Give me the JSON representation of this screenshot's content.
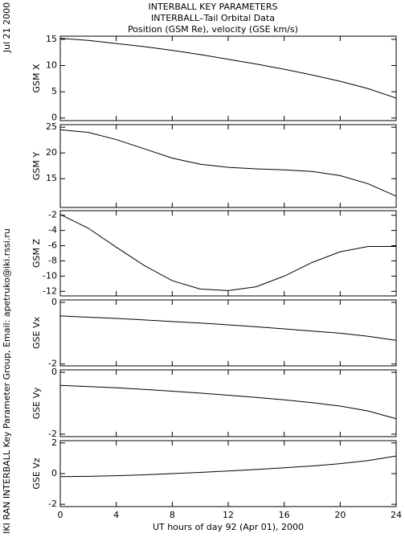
{
  "header": {
    "title": "INTERBALL KEY PARAMETERS",
    "subtitle": "INTERBALL–Tail Orbital Data",
    "description": "Position (GSM Re), velocity (GSE km/s)"
  },
  "side": {
    "date": "Jul 21 2000",
    "credit": "IKI RAN INTERBALL Key Parameter Group, Email: apetruko@iki.rssi.ru"
  },
  "chart_data": [
    {
      "type": "line",
      "ylabel": "GSM X",
      "x": [
        0,
        2,
        4,
        6,
        8,
        10,
        12,
        14,
        16,
        18,
        20,
        22,
        24
      ],
      "values": [
        15.2,
        14.8,
        14.2,
        13.6,
        12.9,
        12.1,
        11.2,
        10.3,
        9.3,
        8.2,
        7.0,
        5.6,
        3.8
      ],
      "xlim": [
        0,
        24
      ],
      "xticks": [
        0,
        4,
        8,
        12,
        16,
        20,
        24
      ],
      "ylim": [
        -0.5,
        15.6
      ],
      "yticks": [
        0,
        5,
        10,
        15
      ],
      "color": "#000000"
    },
    {
      "type": "line",
      "ylabel": "GSM Y",
      "x": [
        0,
        2,
        4,
        6,
        8,
        10,
        12,
        14,
        16,
        18,
        20,
        22,
        24
      ],
      "values": [
        24.5,
        24.0,
        22.6,
        20.8,
        19.0,
        17.8,
        17.2,
        16.9,
        16.7,
        16.4,
        15.6,
        14.0,
        11.6
      ],
      "xlim": [
        0,
        24
      ],
      "xticks": [
        0,
        4,
        8,
        12,
        16,
        20,
        24
      ],
      "ylim": [
        9.4,
        25.5
      ],
      "yticks": [
        15,
        20,
        25
      ],
      "color": "#000000"
    },
    {
      "type": "line",
      "ylabel": "GSM Z",
      "x": [
        0,
        2,
        4,
        6,
        8,
        10,
        12,
        14,
        16,
        18,
        20,
        22,
        24
      ],
      "values": [
        -1.9,
        -3.7,
        -6.2,
        -8.6,
        -10.6,
        -11.7,
        -11.9,
        -11.4,
        -10.0,
        -8.2,
        -6.8,
        -6.1,
        -6.1
      ],
      "xlim": [
        0,
        24
      ],
      "xticks": [
        0,
        4,
        8,
        12,
        16,
        20,
        24
      ],
      "ylim": [
        -12.6,
        -1.4
      ],
      "yticks": [
        -2,
        -4,
        -6,
        -8,
        -10,
        -12
      ],
      "color": "#000000"
    },
    {
      "type": "line",
      "ylabel": "GSE Vx",
      "x": [
        0,
        2,
        4,
        6,
        8,
        10,
        12,
        14,
        16,
        18,
        20,
        22,
        24
      ],
      "values": [
        -0.44,
        -0.48,
        -0.52,
        -0.57,
        -0.62,
        -0.67,
        -0.73,
        -0.79,
        -0.86,
        -0.93,
        -1.0,
        -1.1,
        -1.23
      ],
      "xlim": [
        0,
        24
      ],
      "xticks": [
        0,
        4,
        8,
        12,
        16,
        20,
        24
      ],
      "ylim": [
        -2.06,
        0.08
      ],
      "yticks": [
        0,
        -2
      ],
      "color": "#000000"
    },
    {
      "type": "line",
      "ylabel": "GSE Vy",
      "x": [
        0,
        2,
        4,
        6,
        8,
        10,
        12,
        14,
        16,
        18,
        20,
        22,
        24
      ],
      "values": [
        -0.42,
        -0.46,
        -0.5,
        -0.55,
        -0.61,
        -0.67,
        -0.74,
        -0.81,
        -0.89,
        -0.98,
        -1.09,
        -1.25,
        -1.5
      ],
      "xlim": [
        0,
        24
      ],
      "xticks": [
        0,
        4,
        8,
        12,
        16,
        20,
        24
      ],
      "ylim": [
        -2.08,
        0.08
      ],
      "yticks": [
        0,
        -2
      ],
      "color": "#000000"
    },
    {
      "type": "line",
      "ylabel": "GSE Vz",
      "xlabel": "UT hours of day  92 (Apr 01), 2000",
      "x": [
        0,
        2,
        4,
        6,
        8,
        10,
        12,
        14,
        16,
        18,
        20,
        22,
        24
      ],
      "values": [
        -0.2,
        -0.18,
        -0.14,
        -0.08,
        0,
        0.08,
        0.17,
        0.27,
        0.38,
        0.5,
        0.65,
        0.85,
        1.15
      ],
      "xlim": [
        0,
        24
      ],
      "xticks": [
        0,
        4,
        8,
        12,
        16,
        20,
        24
      ],
      "ylim": [
        -2.15,
        2.15
      ],
      "yticks": [
        -2,
        0,
        2
      ],
      "color": "#000000"
    }
  ]
}
